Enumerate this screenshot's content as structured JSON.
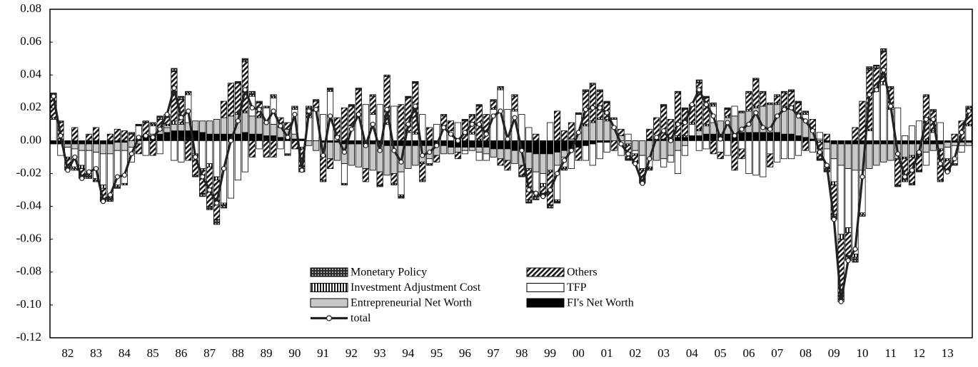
{
  "chart_data": {
    "type": "bar",
    "stacked": true,
    "grid": false,
    "legend": "lower center",
    "ylim": [
      -0.12,
      0.08
    ],
    "yticks": [
      -0.12,
      {
        "value": -0.1,
        "label": "-0.10"
      },
      -0.08,
      -0.06,
      -0.04,
      -0.02,
      {
        "value": 0,
        "label": "0.00"
      },
      0.02,
      0.04,
      0.06,
      0.08
    ],
    "categories": [
      null,
      null,
      "82",
      null,
      null,
      null,
      "83",
      null,
      null,
      null,
      "84",
      null,
      null,
      null,
      "85",
      null,
      null,
      null,
      "86",
      null,
      null,
      null,
      "87",
      null,
      null,
      null,
      "88",
      null,
      null,
      null,
      "89",
      null,
      null,
      null,
      "90",
      null,
      null,
      null,
      "91",
      null,
      null,
      null,
      "92",
      null,
      null,
      null,
      "93",
      null,
      null,
      null,
      "94",
      null,
      null,
      null,
      "95",
      null,
      null,
      null,
      "96",
      null,
      null,
      null,
      "97",
      null,
      null,
      null,
      "98",
      null,
      null,
      null,
      "99",
      null,
      null,
      null,
      "00",
      null,
      null,
      null,
      "01",
      null,
      null,
      null,
      "02",
      null,
      null,
      null,
      "03",
      null,
      null,
      null,
      "04",
      null,
      null,
      null,
      "05",
      null,
      null,
      null,
      "06",
      null,
      null,
      null,
      "07",
      null,
      null,
      null,
      "08",
      null,
      null,
      null,
      "09",
      null,
      null,
      null,
      "10",
      null,
      null,
      null,
      "11",
      null,
      null,
      null,
      "12",
      null,
      null,
      null,
      "13",
      null,
      null,
      null
    ],
    "series": [
      {
        "name": "Monetary Policy",
        "color": "#2b2b2b",
        "pattern": "dots",
        "values": [
          0.002,
          0.001,
          -0.002,
          -0.001,
          -0.002,
          -0.002,
          -0.001,
          -0.002,
          -0.002,
          -0.001,
          0.0,
          0.001,
          0.001,
          0.001,
          0.001,
          0.002,
          0.002,
          0.002,
          0.002,
          0.001,
          -0.001,
          -0.002,
          -0.002,
          -0.003,
          -0.002,
          0.0,
          0.001,
          0.002,
          0.002,
          0.001,
          0.001,
          0.001,
          0.0,
          -0.001,
          0.001,
          -0.002,
          0.001,
          0.001,
          -0.001,
          0.001,
          0.0,
          -0.001,
          0.001,
          0.001,
          0.0,
          0.001,
          -0.001,
          0.001,
          -0.001,
          -0.001,
          0.001,
          0.001,
          -0.001,
          -0.001,
          0.0,
          0.001,
          0.0,
          0.0,
          0.001,
          0.001,
          0.001,
          0.0,
          0.001,
          0.001,
          0.0,
          0.001,
          -0.001,
          -0.002,
          -0.002,
          -0.002,
          -0.002,
          -0.001,
          -0.001,
          0.0,
          0.001,
          0.001,
          0.001,
          0.001,
          0.001,
          0.001,
          0.0,
          -0.001,
          -0.001,
          -0.002,
          -0.001,
          0.0,
          0.001,
          0.0,
          0.001,
          0.001,
          0.001,
          0.002,
          0.001,
          0.001,
          0.0,
          0.001,
          0.0,
          0.001,
          0.001,
          0.001,
          0.001,
          0.001,
          0.001,
          0.001,
          0.001,
          0.001,
          0.001,
          0.0,
          -0.001,
          -0.002,
          -0.003,
          -0.004,
          -0.003,
          -0.003,
          -0.001,
          0.002,
          0.002,
          0.002,
          0.001,
          -0.001,
          -0.002,
          -0.001,
          -0.001,
          0.001,
          0.001,
          -0.001,
          -0.001,
          -0.001,
          0.0,
          0.001
        ]
      },
      {
        "name": "Others",
        "color": "#1a1a1a",
        "pattern": "diagonal",
        "values": [
          0.013,
          0.01,
          -0.005,
          0.008,
          -0.004,
          0.004,
          0.008,
          -0.006,
          0.004,
          0.007,
          0.006,
          0.004,
          -0.006,
          0.008,
          -0.009,
          0.006,
          0.004,
          0.03,
          0.014,
          -0.012,
          -0.012,
          -0.014,
          -0.024,
          -0.024,
          0.01,
          0.02,
          0.018,
          0.03,
          -0.01,
          0.008,
          -0.01,
          -0.01,
          0.006,
          0.004,
          -0.005,
          -0.012,
          0.005,
          0.005,
          -0.014,
          -0.006,
          0.012,
          0.02,
          0.012,
          0.015,
          -0.008,
          0.01,
          -0.008,
          0.028,
          -0.006,
          0.022,
          0.02,
          0.03,
          -0.01,
          0.008,
          -0.004,
          0.008,
          0.006,
          -0.004,
          0.012,
          0.01,
          0.02,
          0.016,
          0.004,
          -0.004,
          -0.006,
          0.008,
          -0.006,
          -0.018,
          0.004,
          -0.004,
          -0.02,
          0.018,
          0.006,
          0.01,
          -0.008,
          0.02,
          0.022,
          0.016,
          0.01,
          -0.006,
          0.004,
          -0.008,
          -0.004,
          -0.006,
          0.006,
          0.012,
          0.02,
          0.012,
          0.026,
          0.016,
          0.01,
          0.028,
          0.016,
          -0.008,
          -0.004,
          0.004,
          -0.018,
          -0.006,
          0.01,
          0.016,
          0.008,
          -0.008,
          0.004,
          0.008,
          0.01,
          0.006,
          -0.006,
          0.006,
          -0.01,
          0.004,
          -0.018,
          -0.034,
          -0.014,
          0.008,
          0.024,
          0.036,
          0.012,
          0.018,
          0.012,
          -0.016,
          -0.012,
          -0.016,
          -0.01,
          0.026,
          0.012,
          -0.018,
          -0.006,
          0.004,
          0.012,
          0.01
        ]
      },
      {
        "name": "Investment Adjustment Cost",
        "color": "#1a1a1a",
        "pattern": "vertical",
        "values": [
          0.001,
          0.001,
          -0.001,
          -0.001,
          -0.002,
          -0.001,
          -0.001,
          -0.002,
          -0.002,
          -0.001,
          -0.001,
          0.0,
          0.0,
          0.001,
          0.001,
          0.001,
          0.001,
          0.002,
          0.001,
          0.001,
          -0.001,
          -0.001,
          -0.002,
          -0.002,
          -0.001,
          0.0,
          0.001,
          0.001,
          0.001,
          0.001,
          0.0,
          0.001,
          0.0,
          0.0,
          0.001,
          -0.001,
          0.001,
          0.001,
          -0.001,
          0.001,
          0.0,
          0.0,
          0.0,
          0.001,
          0.0,
          0.001,
          0.0,
          0.001,
          0.0,
          -0.001,
          0.001,
          0.001,
          -0.001,
          0.0,
          0.0,
          0.0,
          0.0,
          0.0,
          0.0,
          0.001,
          0.001,
          0.0,
          0.001,
          0.001,
          0.0,
          0.001,
          0.0,
          -0.001,
          -0.002,
          -0.002,
          -0.001,
          -0.001,
          -0.001,
          0.0,
          0.0,
          0.001,
          0.001,
          0.001,
          0.001,
          0.0,
          0.0,
          -0.001,
          -0.001,
          -0.001,
          -0.001,
          0.0,
          0.0,
          0.0,
          0.001,
          0.001,
          0.001,
          0.001,
          0.001,
          0.001,
          0.0,
          0.001,
          0.0,
          0.0,
          0.001,
          0.001,
          0.0,
          0.0,
          0.001,
          0.001,
          0.001,
          0.001,
          0.001,
          0.0,
          -0.001,
          -0.001,
          -0.002,
          -0.003,
          -0.003,
          -0.002,
          -0.001,
          0.001,
          0.002,
          0.002,
          0.001,
          0.0,
          -0.001,
          -0.001,
          0.0,
          0.001,
          0.001,
          -0.001,
          -0.001,
          0.0,
          0.0,
          0.001
        ]
      },
      {
        "name": "TFP",
        "color": "#ffffff",
        "pattern": "none",
        "values": [
          0.013,
          -0.007,
          -0.006,
          -0.011,
          -0.009,
          -0.014,
          -0.016,
          -0.019,
          -0.025,
          -0.021,
          -0.02,
          -0.009,
          0.008,
          -0.009,
          0.005,
          -0.008,
          0.001,
          -0.012,
          -0.013,
          0.017,
          -0.008,
          -0.017,
          -0.014,
          -0.022,
          -0.038,
          -0.035,
          -0.024,
          -0.019,
          0.012,
          -0.005,
          0.009,
          0.016,
          -0.005,
          -0.008,
          0.015,
          -0.004,
          0.014,
          0.018,
          0.016,
          0.03,
          0.002,
          -0.012,
          0.009,
          0.015,
          0.022,
          0.016,
          0.022,
          0.01,
          0.021,
          -0.014,
          0.005,
          0.004,
          0.016,
          -0.003,
          0.01,
          0.007,
          0.006,
          0.011,
          -0.002,
          0.004,
          -0.005,
          -0.004,
          0.019,
          0.031,
          0.019,
          0.018,
          0.016,
          0.008,
          -0.013,
          -0.006,
          0.011,
          -0.021,
          -0.006,
          -0.012,
          0.011,
          -0.009,
          -0.013,
          -0.01,
          -0.006,
          0.005,
          -0.009,
          0.004,
          -0.002,
          -0.008,
          -0.005,
          0.001,
          -0.005,
          -0.004,
          -0.014,
          -0.006,
          0.007,
          -0.006,
          -0.005,
          0.01,
          -0.007,
          -0.009,
          0.006,
          -0.005,
          -0.02,
          -0.021,
          -0.022,
          -0.008,
          -0.013,
          -0.011,
          -0.011,
          -0.009,
          0.004,
          -0.007,
          0.004,
          -0.011,
          -0.014,
          -0.042,
          -0.036,
          -0.051,
          -0.026,
          0.006,
          0.03,
          0.034,
          0.019,
          0.02,
          0.003,
          0.009,
          0.012,
          -0.008,
          0.005,
          0.011,
          -0.007,
          -0.011,
          -0.004,
          0.009
        ]
      },
      {
        "name": "Entrepreneurial Net Worth",
        "color": "#c8c8c8",
        "pattern": "none",
        "values": [
          0.0,
          0.0,
          -0.002,
          -0.003,
          -0.004,
          -0.004,
          -0.005,
          -0.006,
          -0.006,
          -0.005,
          -0.005,
          -0.004,
          -0.002,
          0.0,
          0.001,
          0.002,
          0.003,
          0.004,
          0.004,
          0.005,
          0.006,
          0.007,
          0.008,
          0.009,
          0.01,
          0.011,
          0.012,
          0.012,
          0.011,
          0.01,
          0.008,
          0.007,
          0.006,
          0.005,
          0.003,
          0.0,
          -0.003,
          -0.006,
          -0.008,
          -0.01,
          -0.011,
          -0.012,
          -0.013,
          -0.014,
          -0.015,
          -0.016,
          -0.017,
          -0.018,
          -0.017,
          -0.016,
          -0.014,
          -0.012,
          -0.01,
          -0.008,
          -0.006,
          -0.005,
          -0.004,
          -0.003,
          -0.002,
          -0.002,
          -0.003,
          -0.004,
          -0.005,
          -0.006,
          -0.007,
          -0.008,
          -0.009,
          -0.01,
          -0.011,
          -0.012,
          -0.01,
          -0.008,
          -0.004,
          0.001,
          0.005,
          0.009,
          0.011,
          0.013,
          0.012,
          0.008,
          0.003,
          -0.002,
          -0.006,
          -0.009,
          -0.011,
          -0.012,
          -0.011,
          -0.009,
          -0.006,
          -0.003,
          0.0,
          0.003,
          0.005,
          0.007,
          0.008,
          0.01,
          0.011,
          0.012,
          0.013,
          0.015,
          0.016,
          0.017,
          0.017,
          0.016,
          0.015,
          0.013,
          0.01,
          0.006,
          0.001,
          -0.004,
          -0.009,
          -0.013,
          -0.015,
          -0.016,
          -0.016,
          -0.015,
          -0.013,
          -0.011,
          -0.01,
          -0.009,
          -0.008,
          -0.007,
          -0.006,
          -0.005,
          -0.004,
          -0.003,
          -0.003,
          -0.002,
          -0.002,
          -0.002
        ]
      },
      {
        "name": "FI's Net Worth",
        "color": "#000000",
        "pattern": "none",
        "values": [
          -0.002,
          -0.002,
          -0.002,
          -0.002,
          -0.002,
          -0.002,
          -0.002,
          -0.002,
          -0.002,
          -0.001,
          -0.001,
          0.0,
          0.001,
          0.002,
          0.003,
          0.004,
          0.005,
          0.006,
          0.006,
          0.006,
          0.006,
          0.005,
          0.004,
          0.004,
          0.004,
          0.004,
          0.004,
          0.005,
          0.004,
          0.004,
          0.003,
          0.003,
          0.002,
          0.002,
          0.001,
          0.001,
          0.0,
          0.0,
          -0.001,
          -0.001,
          -0.001,
          -0.002,
          -0.002,
          -0.002,
          -0.002,
          -0.002,
          -0.002,
          -0.003,
          -0.003,
          -0.003,
          -0.003,
          -0.003,
          -0.003,
          -0.003,
          -0.003,
          -0.003,
          -0.004,
          -0.004,
          -0.004,
          -0.004,
          -0.004,
          -0.004,
          -0.005,
          -0.005,
          -0.005,
          -0.006,
          -0.006,
          -0.007,
          -0.008,
          -0.008,
          -0.008,
          -0.007,
          -0.006,
          -0.005,
          -0.004,
          -0.003,
          -0.002,
          -0.001,
          -0.001,
          0.0,
          0.0,
          0.0,
          0.0,
          0.0,
          0.001,
          0.001,
          0.001,
          0.001,
          0.002,
          0.002,
          0.003,
          0.003,
          0.004,
          0.004,
          0.004,
          0.004,
          0.004,
          0.005,
          0.005,
          0.005,
          0.005,
          0.005,
          0.005,
          0.004,
          0.004,
          0.003,
          0.002,
          0.001,
          0.0,
          -0.001,
          -0.002,
          -0.002,
          -0.002,
          -0.002,
          -0.002,
          -0.002,
          -0.002,
          -0.002,
          -0.002,
          -0.002,
          -0.002,
          -0.002,
          -0.002,
          -0.002,
          -0.002,
          -0.002,
          -0.001,
          -0.001,
          -0.001,
          -0.001
        ]
      },
      {
        "name": "total",
        "type": "line",
        "color": "#222222",
        "values": [
          0.027,
          0.003,
          -0.018,
          -0.01,
          -0.023,
          -0.019,
          -0.017,
          -0.037,
          -0.033,
          -0.022,
          -0.021,
          -0.008,
          0.002,
          0.003,
          0.002,
          0.007,
          0.016,
          0.032,
          0.014,
          0.018,
          -0.01,
          -0.022,
          -0.03,
          -0.038,
          -0.017,
          0.0,
          0.012,
          0.031,
          0.02,
          0.019,
          0.011,
          0.018,
          0.009,
          0.002,
          0.016,
          -0.018,
          0.018,
          0.019,
          -0.009,
          0.015,
          0.002,
          -0.007,
          0.007,
          0.016,
          -0.003,
          0.01,
          -0.006,
          0.019,
          -0.006,
          -0.013,
          0.01,
          0.021,
          -0.009,
          -0.007,
          -0.003,
          0.008,
          0.004,
          0.0,
          0.005,
          0.01,
          0.01,
          0.004,
          0.015,
          0.018,
          0.001,
          0.014,
          -0.006,
          -0.03,
          -0.032,
          -0.034,
          -0.03,
          -0.02,
          -0.012,
          -0.006,
          0.005,
          0.019,
          0.02,
          0.02,
          0.017,
          0.008,
          -0.002,
          -0.008,
          -0.014,
          -0.026,
          -0.011,
          0.002,
          0.006,
          0.0,
          0.01,
          0.011,
          0.022,
          0.031,
          0.022,
          0.015,
          0.001,
          0.011,
          0.003,
          0.007,
          0.01,
          0.017,
          0.008,
          0.007,
          0.015,
          0.019,
          0.02,
          0.015,
          0.012,
          0.006,
          -0.007,
          -0.015,
          -0.048,
          -0.098,
          -0.073,
          -0.066,
          -0.022,
          0.028,
          0.031,
          0.043,
          0.021,
          -0.008,
          -0.022,
          -0.018,
          -0.007,
          0.013,
          0.013,
          -0.014,
          -0.019,
          -0.011,
          0.005,
          0.018
        ]
      }
    ]
  }
}
